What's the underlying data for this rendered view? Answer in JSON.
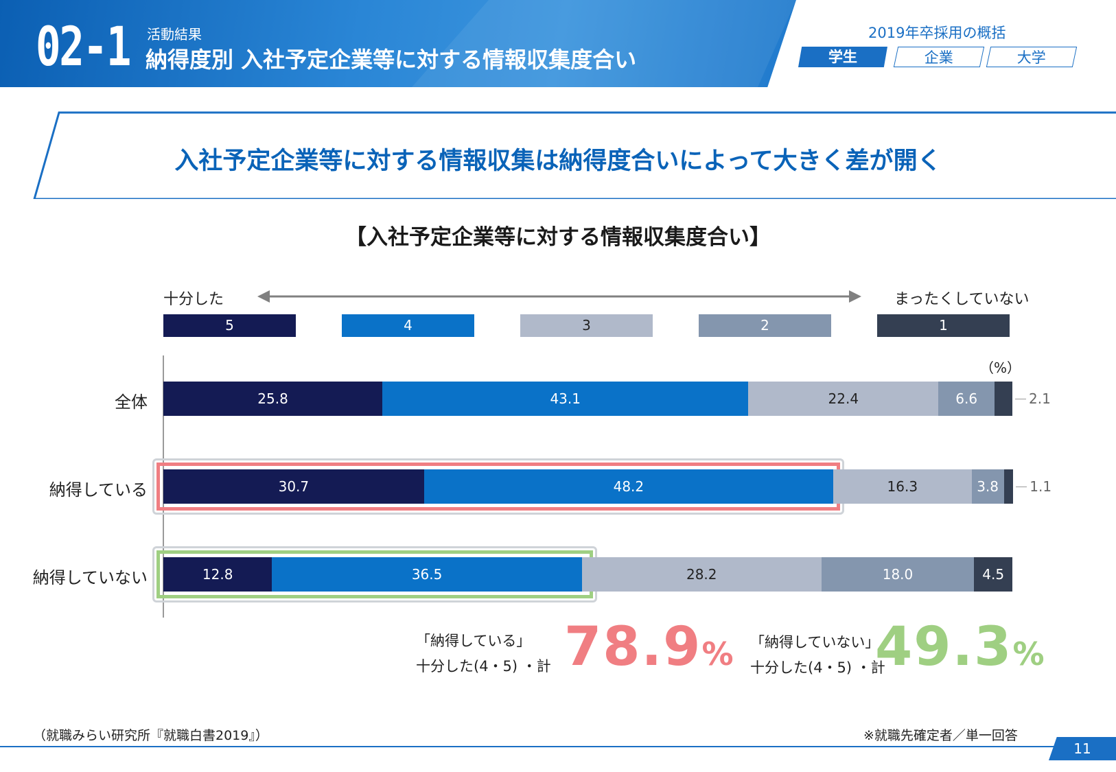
{
  "header": {
    "section_number": "02-1",
    "kicker": "活動結果",
    "title": "納得度別 入社予定企業等に対する情報収集度合い",
    "overview_label": "2019年卒採用の概括",
    "tabs": [
      "学生",
      "企業",
      "大学"
    ],
    "active_tab": "学生"
  },
  "headline": "入社予定企業等に対する情報収集は納得度合いによって大きく差が開く",
  "chart_title": "【入社予定企業等に対する情報収集度合い】",
  "scale": {
    "left_label": "十分した",
    "right_label": "まったくしていない"
  },
  "colors": {
    "level5": "#141b54",
    "level4": "#0a72c8",
    "level3": "#b0b9ca",
    "level2": "#8496ae",
    "level1": "#343f52",
    "accent_red": "#f07e82",
    "accent_green": "#9fcf82",
    "brand_blue": "#1a6fc4"
  },
  "chart_data": {
    "type": "bar",
    "orientation": "horizontal-stacked-100",
    "unit_label": "（%）",
    "legend": [
      "5",
      "4",
      "3",
      "2",
      "1"
    ],
    "categories": [
      "全体",
      "納得している",
      "納得していない"
    ],
    "series": [
      {
        "name": "5",
        "values": [
          25.8,
          30.7,
          12.8
        ]
      },
      {
        "name": "4",
        "values": [
          43.1,
          48.2,
          36.5
        ]
      },
      {
        "name": "3",
        "values": [
          22.4,
          16.3,
          28.2
        ]
      },
      {
        "name": "2",
        "values": [
          6.6,
          3.8,
          18.0
        ]
      },
      {
        "name": "1",
        "values": [
          2.1,
          1.1,
          4.5
        ]
      }
    ],
    "value_labels": [
      [
        "25.8",
        "43.1",
        "22.4",
        "6.6",
        "2.1"
      ],
      [
        "30.7",
        "48.2",
        "16.3",
        "3.8",
        "1.1"
      ],
      [
        "12.8",
        "36.5",
        "28.2",
        "18.0",
        "4.5"
      ]
    ],
    "xlim": [
      0,
      100
    ]
  },
  "summary": [
    {
      "group": "「納得している」",
      "label": "十分した(4・5) ・計",
      "value": "78.9",
      "unit": "%"
    },
    {
      "group": "「納得していない」",
      "label": "十分した(4・5) ・計",
      "value": "49.3",
      "unit": "%"
    }
  ],
  "footer": {
    "source": "（就職みらい研究所『就職白書2019』）",
    "note": "※就職先確定者／単一回答",
    "page_number": "11"
  }
}
